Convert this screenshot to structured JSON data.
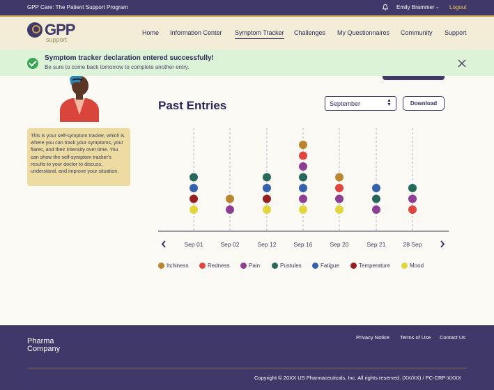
{
  "topbar": {
    "title": "GPP Care: The Patient Support Program",
    "user": "Emily Brammer",
    "logout": "Logout"
  },
  "logo": {
    "text": "GPP",
    "sub": "support"
  },
  "nav": [
    "Home",
    "Information Center",
    "Symptom Tracker",
    "Challenges",
    "My Questionnaires",
    "Community",
    "Support"
  ],
  "nav_active": "Symptom Tracker",
  "alert": {
    "title": "Symptom tracker declaration entered successfully!",
    "subtitle": "Be sure to come back tomorrow to complete another entry."
  },
  "info_text": "This is your self-symptom tracker, which is where you can track your symptoms, your flares, and their intensity over time. You can show the self-symptom tracker's results to your doctor to discuss, understand, and improve your situation.",
  "past_entries": {
    "heading": "Past Entries",
    "month": "September",
    "download": "Download"
  },
  "colors": {
    "accent": "#3f3868",
    "gold": "#c8a24a",
    "success": "#3aa655"
  },
  "chart_data": {
    "type": "scatter",
    "categories": [
      "Sep 01",
      "Sep 02",
      "Sep 12",
      "Sep 16",
      "Sep 20",
      "Sep 21",
      "28 Sep"
    ],
    "series": [
      {
        "name": "Itchiness",
        "color": "#b98530",
        "present": [
          0,
          1,
          0,
          1,
          1,
          0,
          0
        ]
      },
      {
        "name": "Redness",
        "color": "#e0453f",
        "present": [
          0,
          0,
          0,
          1,
          1,
          0,
          1
        ]
      },
      {
        "name": "Pain",
        "color": "#8d3d92",
        "present": [
          0,
          1,
          0,
          1,
          1,
          1,
          1
        ]
      },
      {
        "name": "Pustules",
        "color": "#27685a",
        "present": [
          1,
          0,
          1,
          1,
          0,
          1,
          1
        ]
      },
      {
        "name": "Fatigue",
        "color": "#3461ab",
        "present": [
          1,
          0,
          1,
          1,
          0,
          1,
          0
        ]
      },
      {
        "name": "Temperature",
        "color": "#962021",
        "present": [
          1,
          0,
          1,
          0,
          0,
          0,
          0
        ]
      },
      {
        "name": "Mood",
        "color": "#e3d63c",
        "present": [
          1,
          0,
          1,
          1,
          1,
          0,
          0
        ]
      }
    ],
    "columns": [
      [
        "Mood",
        "Temperature",
        "Fatigue",
        "Pustules"
      ],
      [
        "Pain",
        "Itchiness"
      ],
      [
        "Mood",
        "Temperature",
        "Fatigue",
        "Pustules"
      ],
      [
        "Mood",
        "Pain",
        "Fatigue",
        "Pustules",
        "Pain",
        "Redness",
        "Itchiness"
      ],
      [
        "Mood",
        "Pain",
        "Redness",
        "Itchiness"
      ],
      [
        "Pain",
        "Pustules",
        "Fatigue"
      ],
      [
        "Redness",
        "Pain",
        "Pustules"
      ]
    ]
  },
  "footer": {
    "brand_line1": "Pharma",
    "brand_line2": "Company",
    "links": [
      "Privacy Notice",
      "Terms of Use",
      "Contact Us"
    ],
    "copyright": "Copyright © 20XX US Pharmaceuticals, Inc. All rights reserved. (XX/XX) / PC-CRP-XXXX"
  }
}
